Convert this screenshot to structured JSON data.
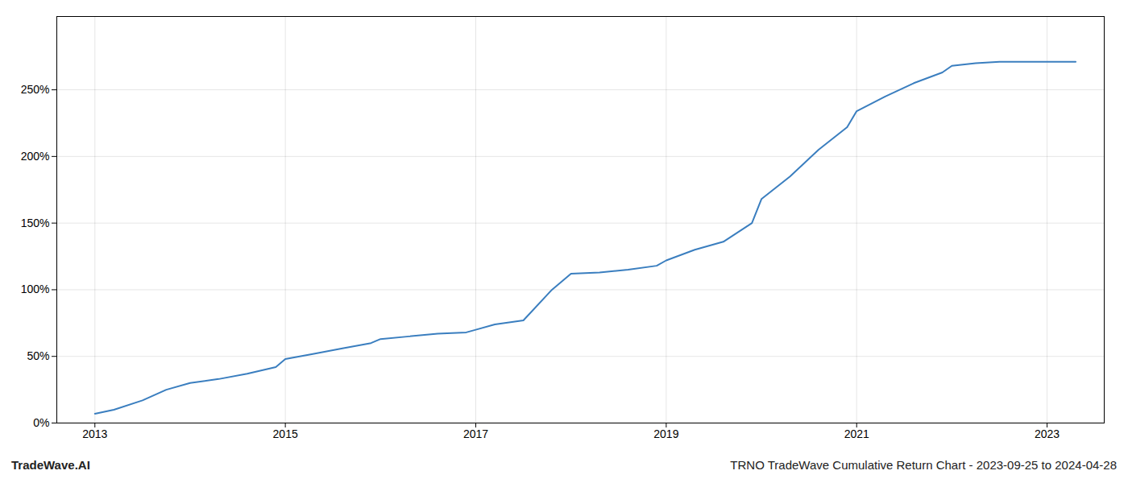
{
  "chart_data": {
    "type": "line",
    "x": [
      2013.0,
      2013.2,
      2013.5,
      2013.75,
      2014.0,
      2014.3,
      2014.6,
      2014.9,
      2015.0,
      2015.3,
      2015.6,
      2015.9,
      2016.0,
      2016.3,
      2016.6,
      2016.9,
      2017.0,
      2017.2,
      2017.5,
      2017.8,
      2018.0,
      2018.3,
      2018.6,
      2018.9,
      2019.0,
      2019.3,
      2019.6,
      2019.9,
      2020.0,
      2020.3,
      2020.6,
      2020.9,
      2021.0,
      2021.3,
      2021.6,
      2021.9,
      2022.0,
      2022.25,
      2022.5,
      2022.75,
      2023.0,
      2023.3
    ],
    "values": [
      7,
      10,
      17,
      25,
      30,
      33,
      37,
      42,
      48,
      52,
      56,
      60,
      63,
      65,
      67,
      68,
      70,
      74,
      77,
      100,
      112,
      113,
      115,
      118,
      122,
      130,
      136,
      150,
      168,
      185,
      205,
      222,
      234,
      245,
      255,
      263,
      268,
      270,
      271,
      271,
      271,
      271
    ],
    "color": "#3a7ebf",
    "xlim": [
      2012.6,
      2023.6
    ],
    "xticks": [
      2013,
      2015,
      2017,
      2019,
      2021,
      2023
    ],
    "ylim": [
      0,
      305
    ],
    "yticks": [
      {
        "value": 0,
        "label": "0%"
      },
      {
        "value": 50,
        "label": "50%"
      },
      {
        "value": 100,
        "label": "100%"
      },
      {
        "value": 150,
        "label": "150%"
      },
      {
        "value": 200,
        "label": "200%"
      },
      {
        "value": 250,
        "label": "250%"
      }
    ],
    "grid": true,
    "annotations": [
      "TradeWave.AI",
      "TRNO TradeWave Cumulative Return Chart - 2023-09-25 to 2024-04-28"
    ]
  }
}
